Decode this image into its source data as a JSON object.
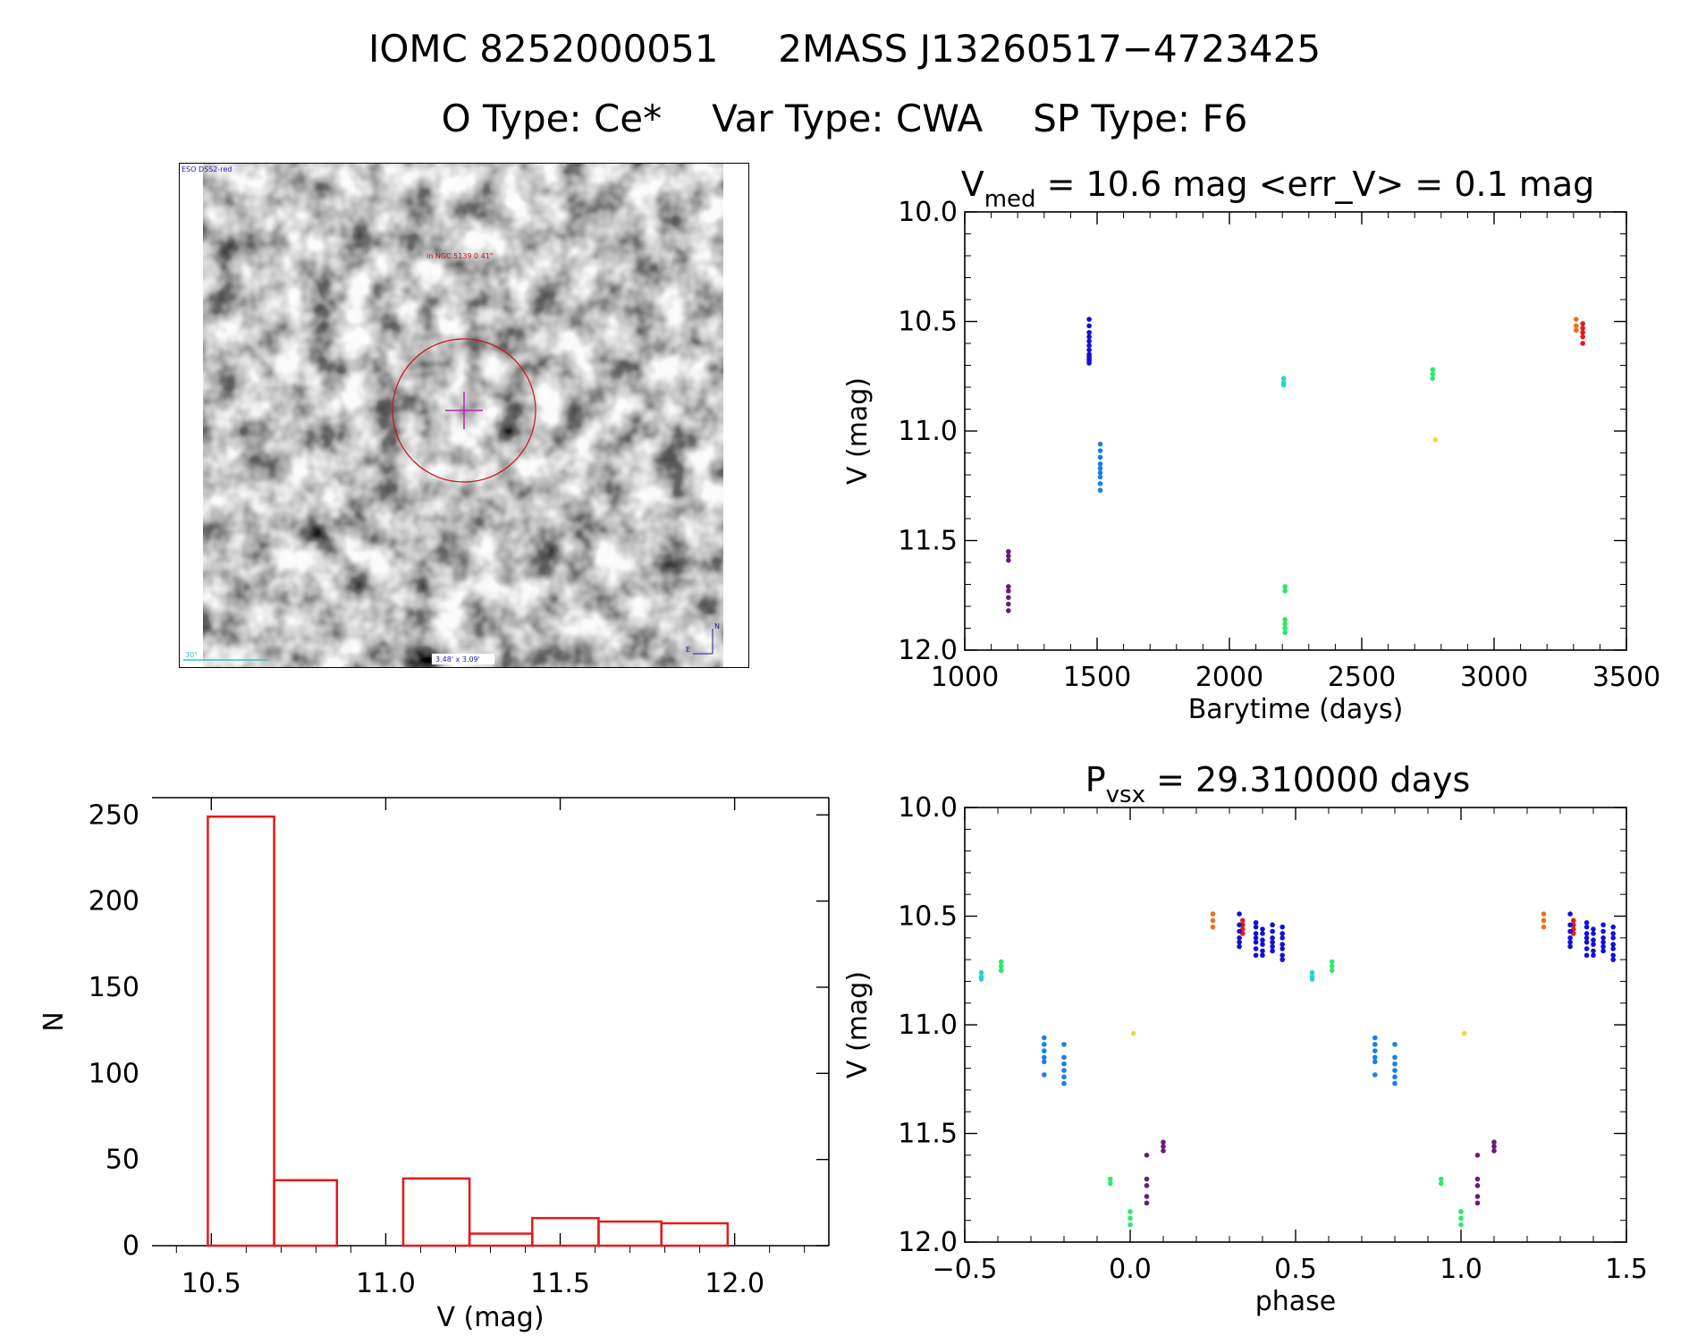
{
  "header": {
    "ids": [
      "IOMC 8252000051",
      "2MASS J13260517−4723425"
    ],
    "types": [
      "O Type: Ce*",
      "Var Type: CWA",
      "SP Type: F6"
    ]
  },
  "finder": {
    "survey_label": "ESO DSS2-red",
    "target_label": "in NGC 5139 0 41\"",
    "scale_label": "30\"",
    "fov_label": "3.48' x 3.09'",
    "north": "N",
    "east": "E"
  },
  "colors": {
    "purple": "#6a1b7a",
    "blue": "#1010d8",
    "skyblue": "#1a7fe8",
    "cyan": "#22d6c8",
    "green": "#2ee86a",
    "yellow": "#e8e030",
    "orange": "#f07018",
    "red": "#e81818",
    "hist": "#e81818"
  },
  "chart_data": [
    {
      "type": "scatter",
      "title_main": "V",
      "title_sub": "med",
      "title_rest": " = 10.6 mag <err_V> = 0.1 mag",
      "xlabel": "Barytime (days)",
      "ylabel": "V (mag)",
      "xlim": [
        1000,
        3500
      ],
      "ylim": [
        12.0,
        10.0
      ],
      "xticks": [
        1000,
        1500,
        2000,
        2500,
        3000,
        3500
      ],
      "yticks": [
        10.0,
        10.5,
        11.0,
        11.5,
        12.0
      ],
      "series": [
        {
          "color": "purple",
          "x": [
            1165,
            1165,
            1165,
            1165,
            1165,
            1165,
            1165,
            1165
          ],
          "y": [
            11.55,
            11.57,
            11.59,
            11.71,
            11.73,
            11.76,
            11.79,
            11.82
          ]
        },
        {
          "color": "blue",
          "x": [
            1470,
            1470,
            1470,
            1470,
            1470,
            1470,
            1470,
            1470,
            1470,
            1470,
            1470,
            1470
          ],
          "y": [
            10.49,
            10.52,
            10.55,
            10.57,
            10.59,
            10.61,
            10.63,
            10.65,
            10.66,
            10.67,
            10.68,
            10.69
          ]
        },
        {
          "color": "skyblue",
          "x": [
            1512,
            1512,
            1512,
            1512,
            1512,
            1512,
            1512,
            1512,
            1512
          ],
          "y": [
            11.06,
            11.09,
            11.12,
            11.15,
            11.17,
            11.19,
            11.21,
            11.24,
            11.27
          ]
        },
        {
          "color": "cyan",
          "x": [
            2205,
            2205,
            2205
          ],
          "y": [
            10.76,
            10.78,
            10.79
          ]
        },
        {
          "color": "green",
          "x": [
            2210,
            2210,
            2210,
            2210,
            2210,
            2210
          ],
          "y": [
            11.71,
            11.73,
            11.86,
            11.88,
            11.9,
            11.92
          ]
        },
        {
          "color": "green",
          "x": [
            2768,
            2768,
            2768
          ],
          "y": [
            10.72,
            10.74,
            10.76
          ]
        },
        {
          "color": "yellow",
          "x": [
            2778
          ],
          "y": [
            11.04
          ]
        },
        {
          "color": "orange",
          "x": [
            3310,
            3310,
            3310
          ],
          "y": [
            10.49,
            10.52,
            10.54
          ]
        },
        {
          "color": "red",
          "x": [
            3335,
            3335,
            3335,
            3335,
            3335
          ],
          "y": [
            10.51,
            10.53,
            10.55,
            10.57,
            10.6
          ]
        }
      ]
    },
    {
      "type": "bar",
      "title": "",
      "xlabel": "V (mag)",
      "ylabel": "N",
      "xlim": [
        10.33,
        12.27
      ],
      "ylim": [
        0,
        260
      ],
      "xticks": [
        10.5,
        11.0,
        11.5,
        12.0
      ],
      "yticks": [
        0,
        50,
        100,
        150,
        200,
        250
      ],
      "bin_edges": [
        10.49,
        10.68,
        10.86,
        11.05,
        11.24,
        11.42,
        11.61,
        11.79,
        11.98
      ],
      "values": [
        249,
        38,
        0,
        39,
        7,
        16,
        14,
        13
      ]
    },
    {
      "type": "scatter",
      "title_main": "P",
      "title_sub": "vsx",
      "title_rest": " = 29.310000 days",
      "xlabel": "phase",
      "ylabel": "V (mag)",
      "xlim": [
        -0.5,
        1.5
      ],
      "ylim": [
        12.0,
        10.0
      ],
      "xticks": [
        -0.5,
        0.0,
        0.5,
        1.0,
        1.5
      ],
      "yticks": [
        10.0,
        10.5,
        11.0,
        11.5,
        12.0
      ],
      "series": [
        {
          "color": "cyan",
          "x": [
            -0.45,
            -0.45,
            -0.45,
            0.55,
            0.55,
            0.55
          ],
          "y": [
            10.76,
            10.78,
            10.79,
            10.76,
            10.78,
            10.79
          ]
        },
        {
          "color": "green",
          "x": [
            -0.39,
            -0.39,
            -0.39,
            0.61,
            0.61,
            0.61
          ],
          "y": [
            10.71,
            10.73,
            10.75,
            10.71,
            10.73,
            10.75
          ]
        },
        {
          "color": "skyblue",
          "x": [
            -0.26,
            -0.26,
            -0.26,
            -0.26,
            -0.26,
            -0.26,
            -0.2,
            -0.2,
            -0.2,
            -0.2,
            -0.2,
            -0.2,
            0.74,
            0.74,
            0.74,
            0.74,
            0.74,
            0.74,
            0.8,
            0.8,
            0.8,
            0.8,
            0.8,
            0.8
          ],
          "y": [
            11.06,
            11.09,
            11.12,
            11.15,
            11.17,
            11.23,
            11.09,
            11.15,
            11.18,
            11.21,
            11.24,
            11.27,
            11.06,
            11.09,
            11.12,
            11.15,
            11.17,
            11.23,
            11.09,
            11.15,
            11.18,
            11.21,
            11.24,
            11.27
          ]
        },
        {
          "color": "green",
          "x": [
            -0.06,
            -0.06,
            0.0,
            0.0,
            0.0,
            0.94,
            0.94,
            1.0,
            1.0,
            1.0
          ],
          "y": [
            11.71,
            11.73,
            11.86,
            11.89,
            11.92,
            11.71,
            11.73,
            11.86,
            11.89,
            11.92
          ]
        },
        {
          "color": "yellow",
          "x": [
            0.01,
            1.01
          ],
          "y": [
            11.04,
            11.04
          ]
        },
        {
          "color": "purple",
          "x": [
            0.05,
            0.05,
            0.05,
            0.05,
            0.05,
            0.1,
            0.1,
            0.1,
            1.05,
            1.05,
            1.05,
            1.05,
            1.05,
            1.1,
            1.1,
            1.1
          ],
          "y": [
            11.6,
            11.71,
            11.74,
            11.79,
            11.82,
            11.54,
            11.56,
            11.58,
            11.6,
            11.71,
            11.74,
            11.79,
            11.82,
            11.54,
            11.56,
            11.58
          ]
        },
        {
          "color": "orange",
          "x": [
            0.25,
            0.25,
            0.25,
            1.25,
            1.25,
            1.25
          ],
          "y": [
            10.49,
            10.52,
            10.55,
            10.49,
            10.52,
            10.55
          ]
        },
        {
          "color": "red",
          "x": [
            0.34,
            0.34,
            0.34,
            0.34,
            1.34,
            1.34,
            1.34,
            1.34
          ],
          "y": [
            10.52,
            10.54,
            10.56,
            10.58,
            10.52,
            10.54,
            10.56,
            10.58
          ]
        },
        {
          "color": "blue",
          "x": [
            0.33,
            0.33,
            0.33,
            0.33,
            0.33,
            0.33,
            0.38,
            0.38,
            0.38,
            0.38,
            0.38,
            0.38,
            0.38,
            0.4,
            0.4,
            0.4,
            0.4,
            0.4,
            0.4,
            0.43,
            0.43,
            0.43,
            0.43,
            0.43,
            0.43,
            0.46,
            0.46,
            0.46,
            0.46,
            0.46,
            0.46,
            0.46,
            1.33,
            1.33,
            1.33,
            1.33,
            1.33,
            1.33,
            1.38,
            1.38,
            1.38,
            1.38,
            1.38,
            1.38,
            1.38,
            1.4,
            1.4,
            1.4,
            1.4,
            1.4,
            1.4,
            1.43,
            1.43,
            1.43,
            1.43,
            1.43,
            1.43,
            1.46,
            1.46,
            1.46,
            1.46,
            1.46,
            1.46,
            1.46
          ],
          "y": [
            10.49,
            10.54,
            10.57,
            10.6,
            10.62,
            10.64,
            10.53,
            10.55,
            10.58,
            10.6,
            10.62,
            10.65,
            10.68,
            10.56,
            10.58,
            10.61,
            10.63,
            10.66,
            10.68,
            10.54,
            10.57,
            10.6,
            10.62,
            10.64,
            10.66,
            10.55,
            10.58,
            10.6,
            10.63,
            10.65,
            10.68,
            10.7,
            10.49,
            10.54,
            10.57,
            10.6,
            10.62,
            10.64,
            10.53,
            10.55,
            10.58,
            10.6,
            10.62,
            10.65,
            10.68,
            10.56,
            10.58,
            10.61,
            10.63,
            10.66,
            10.68,
            10.54,
            10.57,
            10.6,
            10.62,
            10.64,
            10.66,
            10.55,
            10.58,
            10.6,
            10.63,
            10.65,
            10.68,
            10.7
          ]
        }
      ]
    }
  ]
}
